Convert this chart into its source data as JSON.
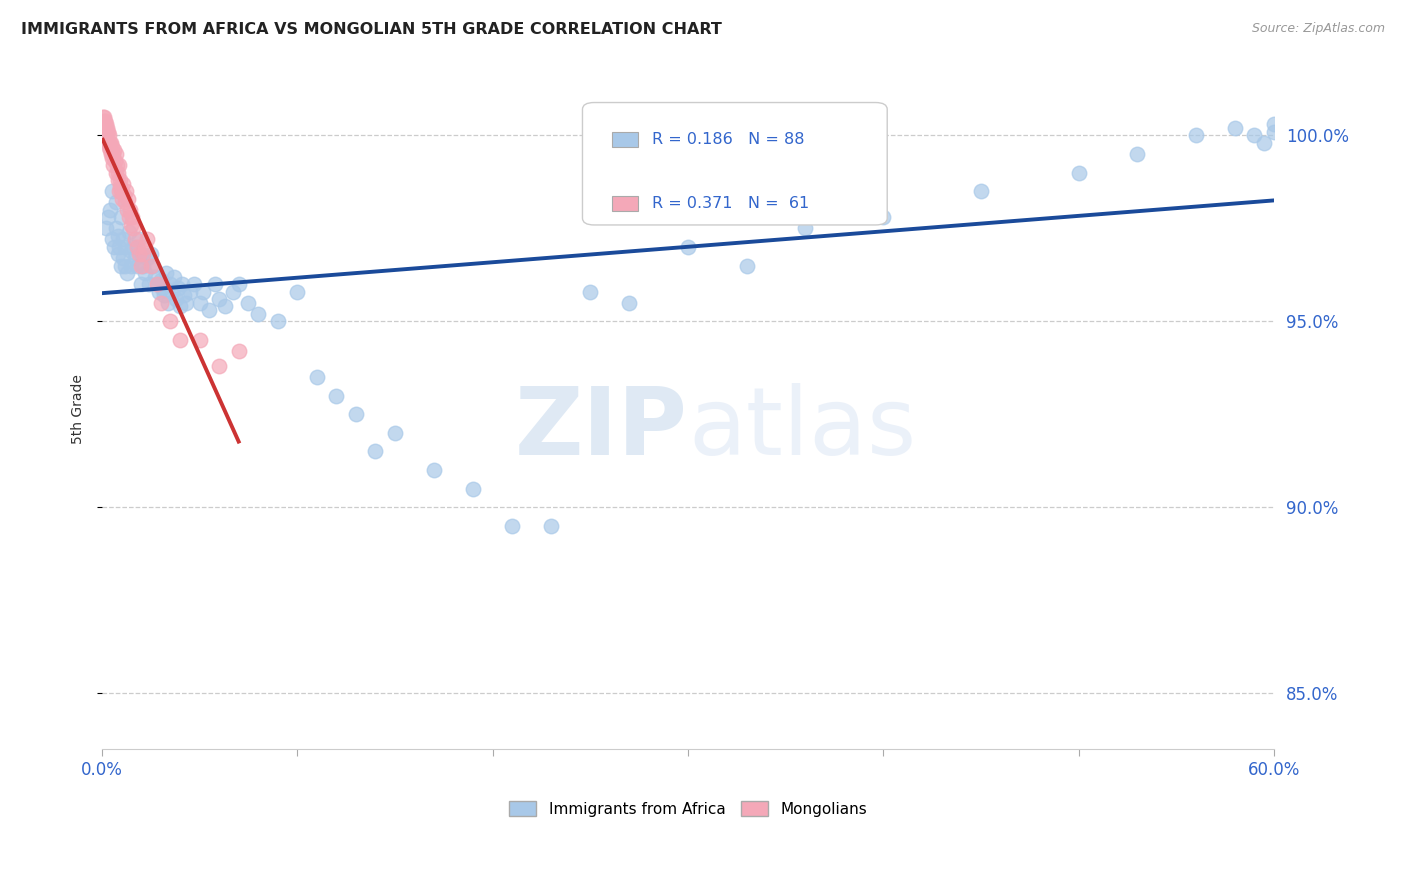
{
  "title": "IMMIGRANTS FROM AFRICA VS MONGOLIAN 5TH GRADE CORRELATION CHART",
  "source": "Source: ZipAtlas.com",
  "ylabel": "5th Grade",
  "ytick_values": [
    85.0,
    90.0,
    95.0,
    100.0
  ],
  "xmin": 0.0,
  "xmax": 60.0,
  "ymin": 83.5,
  "ymax": 101.8,
  "legend_blue_R": "0.186",
  "legend_blue_N": "88",
  "legend_pink_R": "0.371",
  "legend_pink_N": "61",
  "blue_color": "#a8c8e8",
  "pink_color": "#f4a8b8",
  "trendline_blue_color": "#1a4a9a",
  "trendline_pink_color": "#cc3333",
  "watermark_zip": "ZIP",
  "watermark_atlas": "atlas",
  "blue_scatter_x": [
    0.2,
    0.3,
    0.4,
    0.5,
    0.5,
    0.6,
    0.7,
    0.7,
    0.8,
    0.8,
    0.9,
    1.0,
    1.0,
    1.1,
    1.1,
    1.2,
    1.2,
    1.3,
    1.4,
    1.5,
    1.5,
    1.6,
    1.7,
    1.8,
    1.9,
    2.0,
    2.0,
    2.1,
    2.2,
    2.3,
    2.4,
    2.5,
    2.6,
    2.7,
    2.8,
    2.9,
    3.0,
    3.1,
    3.2,
    3.3,
    3.4,
    3.5,
    3.6,
    3.7,
    3.8,
    3.9,
    4.0,
    4.1,
    4.2,
    4.3,
    4.5,
    4.7,
    5.0,
    5.2,
    5.5,
    5.8,
    6.0,
    6.3,
    6.7,
    7.0,
    7.5,
    8.0,
    9.0,
    10.0,
    11.0,
    12.0,
    13.0,
    14.0,
    15.0,
    17.0,
    19.0,
    21.0,
    23.0,
    25.0,
    27.0,
    30.0,
    33.0,
    36.0,
    40.0,
    45.0,
    50.0,
    53.0,
    56.0,
    58.0,
    59.0,
    59.5,
    60.0,
    60.0
  ],
  "blue_scatter_y": [
    97.5,
    97.8,
    98.0,
    97.2,
    98.5,
    97.0,
    97.5,
    98.2,
    96.8,
    97.3,
    97.0,
    96.5,
    97.8,
    96.7,
    97.2,
    96.5,
    97.0,
    96.3,
    97.4,
    96.5,
    96.9,
    97.0,
    96.7,
    96.5,
    97.2,
    96.0,
    96.8,
    96.5,
    96.3,
    96.7,
    96.0,
    96.8,
    96.5,
    96.2,
    96.0,
    95.8,
    96.1,
    95.9,
    95.7,
    96.3,
    95.5,
    96.0,
    95.8,
    96.2,
    95.6,
    95.9,
    95.4,
    96.0,
    95.7,
    95.5,
    95.8,
    96.0,
    95.5,
    95.8,
    95.3,
    96.0,
    95.6,
    95.4,
    95.8,
    96.0,
    95.5,
    95.2,
    95.0,
    95.8,
    93.5,
    93.0,
    92.5,
    91.5,
    92.0,
    91.0,
    90.5,
    89.5,
    89.5,
    95.8,
    95.5,
    97.0,
    96.5,
    97.5,
    97.8,
    98.5,
    99.0,
    99.5,
    100.0,
    100.2,
    100.0,
    99.8,
    100.1,
    100.3
  ],
  "pink_scatter_x": [
    0.05,
    0.08,
    0.1,
    0.12,
    0.15,
    0.18,
    0.2,
    0.22,
    0.25,
    0.28,
    0.3,
    0.32,
    0.35,
    0.38,
    0.4,
    0.42,
    0.45,
    0.48,
    0.5,
    0.52,
    0.55,
    0.58,
    0.6,
    0.65,
    0.7,
    0.72,
    0.75,
    0.8,
    0.82,
    0.85,
    0.9,
    0.92,
    0.95,
    1.0,
    1.05,
    1.1,
    1.15,
    1.2,
    1.25,
    1.3,
    1.35,
    1.4,
    1.45,
    1.5,
    1.55,
    1.6,
    1.7,
    1.8,
    1.9,
    2.0,
    2.1,
    2.2,
    2.3,
    2.5,
    2.8,
    3.0,
    3.5,
    4.0,
    5.0,
    6.0,
    7.0
  ],
  "pink_scatter_y": [
    100.5,
    100.3,
    100.4,
    100.5,
    100.2,
    100.4,
    100.3,
    100.1,
    100.0,
    100.2,
    99.8,
    100.1,
    99.7,
    100.0,
    99.6,
    99.8,
    99.5,
    99.8,
    99.4,
    99.7,
    99.5,
    99.2,
    99.6,
    99.3,
    99.0,
    99.5,
    99.2,
    99.0,
    98.8,
    98.5,
    99.2,
    98.6,
    98.8,
    98.5,
    98.3,
    98.7,
    98.4,
    98.2,
    98.5,
    98.0,
    98.3,
    97.8,
    98.0,
    97.6,
    97.8,
    97.5,
    97.2,
    97.0,
    96.8,
    96.5,
    96.8,
    97.0,
    97.2,
    96.5,
    96.0,
    95.5,
    95.0,
    94.5,
    94.5,
    93.8,
    94.2
  ]
}
